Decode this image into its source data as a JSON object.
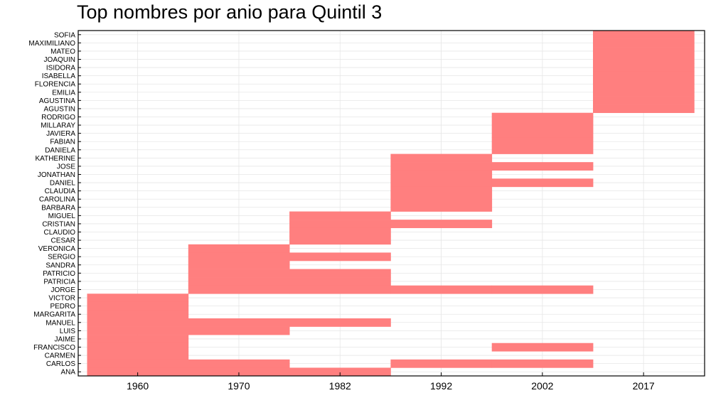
{
  "chart_data": {
    "type": "heatmap",
    "title": "Top nombres por anio para Quintil 3",
    "xlabel": "",
    "ylabel": "",
    "x_categories": [
      "1960",
      "1970",
      "1982",
      "1992",
      "2002",
      "2017"
    ],
    "y_categories": [
      "SOFIA",
      "MAXIMILIANO",
      "MATEO",
      "JOAQUIN",
      "ISIDORA",
      "ISABELLA",
      "FLORENCIA",
      "EMILIA",
      "AGUSTINA",
      "AGUSTIN",
      "RODRIGO",
      "MILLARAY",
      "JAVIERA",
      "FABIAN",
      "DANIELA",
      "KATHERINE",
      "JOSE",
      "JONATHAN",
      "DANIEL",
      "CLAUDIA",
      "CAROLINA",
      "BARBARA",
      "MIGUEL",
      "CRISTIAN",
      "CLAUDIO",
      "CESAR",
      "VERONICA",
      "SERGIO",
      "SANDRA",
      "PATRICIO",
      "PATRICIA",
      "JORGE",
      "VICTOR",
      "PEDRO",
      "MARGARITA",
      "MANUEL",
      "LUIS",
      "JAIME",
      "FRANCISCO",
      "CARMEN",
      "CARLOS",
      "ANA"
    ],
    "present": {
      "SOFIA": [
        "2017"
      ],
      "MAXIMILIANO": [
        "2017"
      ],
      "MATEO": [
        "2017"
      ],
      "JOAQUIN": [
        "2017"
      ],
      "ISIDORA": [
        "2017"
      ],
      "ISABELLA": [
        "2017"
      ],
      "FLORENCIA": [
        "2017"
      ],
      "EMILIA": [
        "2017"
      ],
      "AGUSTINA": [
        "2017"
      ],
      "AGUSTIN": [
        "2017"
      ],
      "RODRIGO": [
        "2002"
      ],
      "MILLARAY": [
        "2002"
      ],
      "JAVIERA": [
        "2002"
      ],
      "FABIAN": [
        "2002"
      ],
      "DANIELA": [
        "2002"
      ],
      "KATHERINE": [
        "1992"
      ],
      "JOSE": [
        "1992",
        "2002"
      ],
      "JONATHAN": [
        "1992"
      ],
      "DANIEL": [
        "1992",
        "2002"
      ],
      "CLAUDIA": [
        "1992"
      ],
      "CAROLINA": [
        "1992"
      ],
      "BARBARA": [
        "1992"
      ],
      "MIGUEL": [
        "1982"
      ],
      "CRISTIAN": [
        "1982",
        "1992"
      ],
      "CLAUDIO": [
        "1982"
      ],
      "CESAR": [
        "1982"
      ],
      "VERONICA": [
        "1970"
      ],
      "SERGIO": [
        "1970",
        "1982"
      ],
      "SANDRA": [
        "1970"
      ],
      "PATRICIO": [
        "1970",
        "1982"
      ],
      "PATRICIA": [
        "1970",
        "1982"
      ],
      "JORGE": [
        "1970",
        "1982",
        "1992",
        "2002"
      ],
      "VICTOR": [
        "1960"
      ],
      "PEDRO": [
        "1960"
      ],
      "MARGARITA": [
        "1960"
      ],
      "MANUEL": [
        "1960",
        "1970",
        "1982"
      ],
      "LUIS": [
        "1960",
        "1970"
      ],
      "JAIME": [
        "1960"
      ],
      "FRANCISCO": [
        "1960",
        "2002"
      ],
      "CARMEN": [
        "1960"
      ],
      "CARLOS": [
        "1960",
        "1970",
        "1992",
        "2002"
      ],
      "ANA": [
        "1960",
        "1970",
        "1982"
      ]
    },
    "color": "#ff7f7f",
    "grid": true,
    "legend": "none"
  }
}
